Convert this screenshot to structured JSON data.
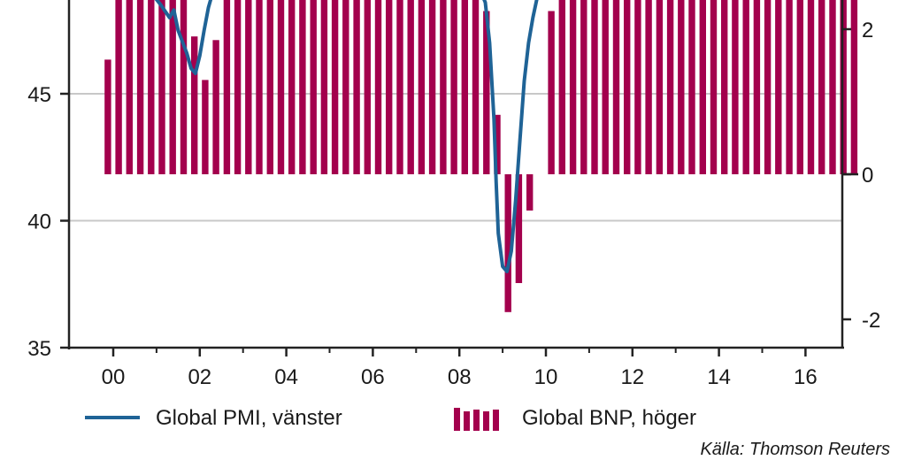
{
  "chart_data": {
    "type": "bar+line",
    "x_ticks": [
      "00",
      "02",
      "04",
      "06",
      "08",
      "10",
      "12",
      "14",
      "16"
    ],
    "y_left": {
      "ticks": [
        35,
        40,
        45
      ],
      "visible_range": [
        35,
        48.5
      ]
    },
    "y_right": {
      "ticks": [
        -2,
        0,
        2
      ],
      "visible_range": [
        -2.4,
        2.4
      ]
    },
    "grid": "horizontal at left-axis ticks",
    "series": [
      {
        "name": "Global PMI, vänster",
        "kind": "line",
        "axis": "left",
        "color": "#1f6396",
        "points": [
          [
            2000.96,
            48.8
          ],
          [
            2001.1,
            48.5
          ],
          [
            2001.3,
            48.0
          ],
          [
            2001.4,
            48.3
          ],
          [
            2001.5,
            47.5
          ],
          [
            2001.7,
            46.6
          ],
          [
            2001.8,
            46.0
          ],
          [
            2001.9,
            45.8
          ],
          [
            2002.0,
            46.5
          ],
          [
            2002.1,
            47.5
          ],
          [
            2002.2,
            48.4
          ],
          [
            2002.3,
            49.0
          ],
          [
            2008.5,
            49.0
          ],
          [
            2008.6,
            48.6
          ],
          [
            2008.7,
            47.0
          ],
          [
            2008.8,
            44.0
          ],
          [
            2008.85,
            41.5
          ],
          [
            2008.9,
            39.5
          ],
          [
            2009.0,
            38.2
          ],
          [
            2009.1,
            38.0
          ],
          [
            2009.2,
            38.8
          ],
          [
            2009.3,
            40.8
          ],
          [
            2009.4,
            43.2
          ],
          [
            2009.5,
            45.5
          ],
          [
            2009.6,
            47.0
          ],
          [
            2009.7,
            48.0
          ],
          [
            2009.8,
            48.8
          ]
        ]
      },
      {
        "name": "Global BNP, höger",
        "kind": "bar",
        "axis": "right",
        "color": "#a3004d",
        "quarters": [
          "1999Q4",
          "2000Q1",
          "2000Q2",
          "2000Q3",
          "2000Q4",
          "2001Q1",
          "2001Q2",
          "2001Q3",
          "2001Q4",
          "2002Q1",
          "2002Q2",
          "2002Q3",
          "2002Q4",
          "2003Q1",
          "2003Q2",
          "2003Q3",
          "2003Q4",
          "2004Q1",
          "2004Q2",
          "2004Q3",
          "2004Q4",
          "2005Q1",
          "2005Q2",
          "2005Q3",
          "2005Q4",
          "2006Q1",
          "2006Q2",
          "2006Q3",
          "2006Q4",
          "2007Q1",
          "2007Q2",
          "2007Q3",
          "2007Q4",
          "2008Q1",
          "2008Q2",
          "2008Q3",
          "2008Q4",
          "2009Q1",
          "2009Q2",
          "2009Q3",
          "2009Q4",
          "2010Q1",
          "2010Q2",
          "2010Q3",
          "2010Q4",
          "2011Q1",
          "2011Q2",
          "2011Q3",
          "2011Q4",
          "2012Q1",
          "2012Q2",
          "2012Q3",
          "2012Q4",
          "2013Q1",
          "2013Q2",
          "2013Q3",
          "2013Q4",
          "2014Q1",
          "2014Q2",
          "2014Q3",
          "2014Q4",
          "2015Q1",
          "2015Q2",
          "2015Q3",
          "2015Q4",
          "2016Q1",
          "2016Q2",
          "2016Q3",
          "2016Q4",
          "2017Q1"
        ],
        "values": [
          1.58,
          3.0,
          3.0,
          3.0,
          3.0,
          3.0,
          3.0,
          3.0,
          1.9,
          1.3,
          1.85,
          3.0,
          3.0,
          3.0,
          3.0,
          3.0,
          3.0,
          3.0,
          3.0,
          3.0,
          3.0,
          3.0,
          3.0,
          3.0,
          3.0,
          3.0,
          3.0,
          3.0,
          3.0,
          3.0,
          3.0,
          3.0,
          3.0,
          3.0,
          3.0,
          2.25,
          0.82,
          -1.9,
          -1.5,
          -0.5,
          0.0,
          2.25,
          3.0,
          3.0,
          3.0,
          3.0,
          3.0,
          3.0,
          3.0,
          3.0,
          3.0,
          3.0,
          3.0,
          3.0,
          3.0,
          3.0,
          3.0,
          3.0,
          3.0,
          3.0,
          3.0,
          3.0,
          3.0,
          3.0,
          3.0,
          3.0,
          3.0,
          3.0,
          3.0,
          3.0
        ]
      }
    ]
  },
  "legend": {
    "pmi_label": "Global PMI, vänster",
    "bnp_label": "Global BNP, höger"
  },
  "source": "Källa: Thomson Reuters"
}
